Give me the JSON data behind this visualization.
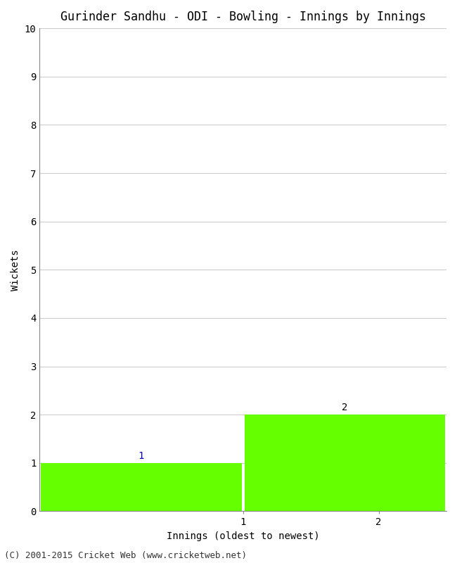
{
  "title": "Gurinder Sandhu - ODI - Bowling - Innings by Innings",
  "xlabel": "Innings (oldest to newest)",
  "ylabel": "Wickets",
  "categories": [
    0.75,
    2.25
  ],
  "values": [
    1,
    2
  ],
  "bar_color": "#66ff00",
  "bar_width": 1.48,
  "ylim": [
    0,
    10
  ],
  "yticks": [
    0,
    1,
    2,
    3,
    4,
    5,
    6,
    7,
    8,
    9,
    10
  ],
  "xtick_positions": [
    1.5,
    2.5
  ],
  "xtick_labels": [
    "1",
    "2"
  ],
  "xlim": [
    0,
    3.0
  ],
  "background_color": "#ffffff",
  "grid_color": "#cccccc",
  "label_fontsize": 10,
  "title_fontsize": 12,
  "tick_fontsize": 10,
  "value_labels": [
    "1",
    "2"
  ],
  "value_label_color_1": "#0000cc",
  "value_label_color_2": "#000000",
  "footer": "(C) 2001-2015 Cricket Web (www.cricketweb.net)",
  "footer_fontsize": 9
}
